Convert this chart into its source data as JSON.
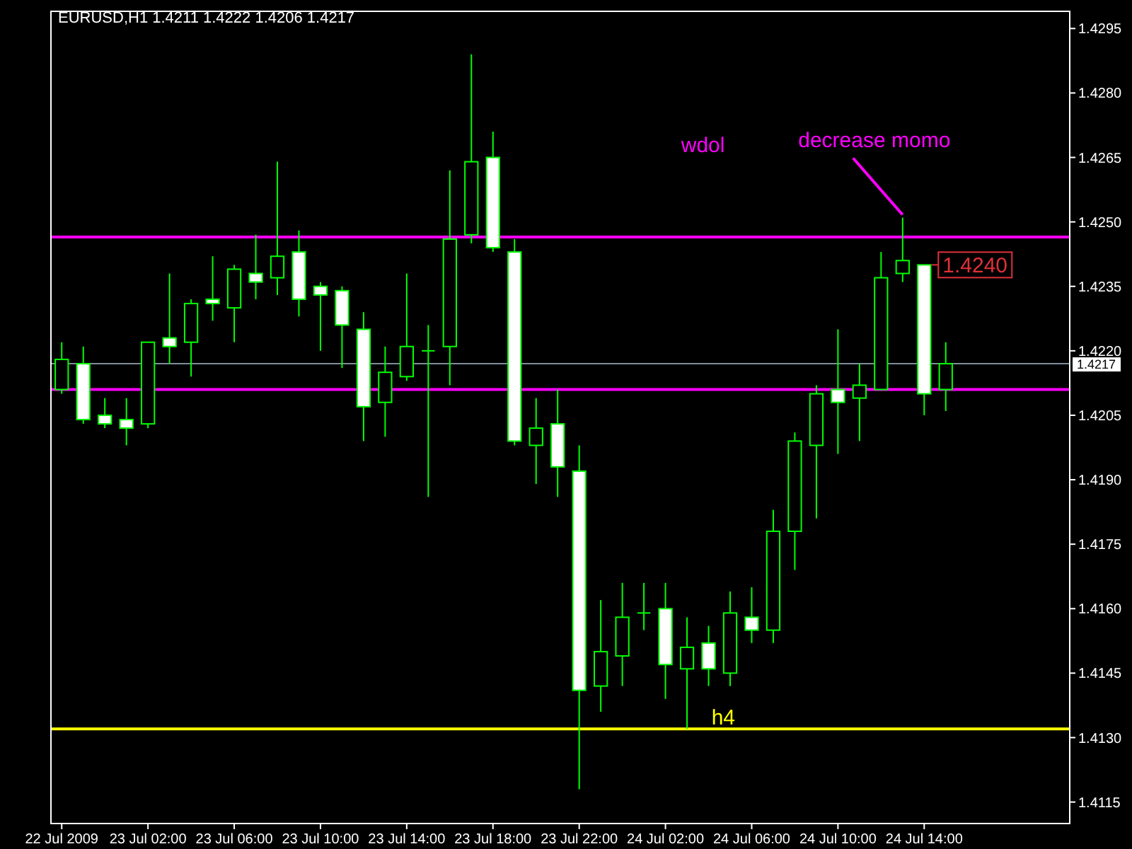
{
  "chart_data": {
    "type": "candlestick",
    "title": "EURUSD,H1  1.4211 1.4222 1.4206 1.4217",
    "color": "#00ff00",
    "x": [
      "2009-07-22T22:00",
      "2009-07-22T23:00",
      "2009-07-23T00:00",
      "2009-07-23T01:00",
      "2009-07-23T02:00",
      "2009-07-23T03:00",
      "2009-07-23T04:00",
      "2009-07-23T05:00",
      "2009-07-23T06:00",
      "2009-07-23T07:00",
      "2009-07-23T08:00",
      "2009-07-23T09:00",
      "2009-07-23T10:00",
      "2009-07-23T11:00",
      "2009-07-23T12:00",
      "2009-07-23T13:00",
      "2009-07-23T14:00",
      "2009-07-23T15:00",
      "2009-07-23T16:00",
      "2009-07-23T17:00",
      "2009-07-23T18:00",
      "2009-07-23T19:00",
      "2009-07-23T20:00",
      "2009-07-23T21:00",
      "2009-07-23T22:00",
      "2009-07-23T23:00",
      "2009-07-24T00:00",
      "2009-07-24T01:00",
      "2009-07-24T02:00",
      "2009-07-24T03:00",
      "2009-07-24T04:00",
      "2009-07-24T05:00",
      "2009-07-24T06:00",
      "2009-07-24T07:00",
      "2009-07-24T08:00",
      "2009-07-24T09:00",
      "2009-07-24T10:00",
      "2009-07-24T11:00",
      "2009-07-24T12:00",
      "2009-07-24T13:00",
      "2009-07-24T14:00",
      "2009-07-24T15:00"
    ],
    "ohlc": [
      [
        1.4211,
        1.4222,
        1.421,
        1.4218
      ],
      [
        1.4217,
        1.4221,
        1.4203,
        1.4204
      ],
      [
        1.4205,
        1.4209,
        1.4202,
        1.4203
      ],
      [
        1.4204,
        1.4209,
        1.4198,
        1.4202
      ],
      [
        1.4203,
        1.4222,
        1.4202,
        1.4222
      ],
      [
        1.4223,
        1.4238,
        1.4217,
        1.4221
      ],
      [
        1.4222,
        1.4232,
        1.4214,
        1.4231
      ],
      [
        1.4232,
        1.4242,
        1.4227,
        1.4231
      ],
      [
        1.423,
        1.424,
        1.4222,
        1.4239
      ],
      [
        1.4238,
        1.4247,
        1.4232,
        1.4236
      ],
      [
        1.4237,
        1.4264,
        1.4233,
        1.4242
      ],
      [
        1.4243,
        1.4248,
        1.4228,
        1.4232
      ],
      [
        1.4235,
        1.4236,
        1.422,
        1.4233
      ],
      [
        1.4234,
        1.4235,
        1.4216,
        1.4226
      ],
      [
        1.4225,
        1.4229,
        1.4199,
        1.4207
      ],
      [
        1.4208,
        1.4221,
        1.42,
        1.4215
      ],
      [
        1.4214,
        1.4238,
        1.4213,
        1.4221
      ],
      [
        1.422,
        1.4226,
        1.4186,
        1.422
      ],
      [
        1.4221,
        1.4262,
        1.4212,
        1.4246
      ],
      [
        1.4247,
        1.4289,
        1.4245,
        1.4264
      ],
      [
        1.4265,
        1.4271,
        1.4243,
        1.4244
      ],
      [
        1.4243,
        1.4246,
        1.4198,
        1.4199
      ],
      [
        1.4198,
        1.4209,
        1.4189,
        1.4202
      ],
      [
        1.4203,
        1.4211,
        1.4186,
        1.4193
      ],
      [
        1.4192,
        1.4198,
        1.4118,
        1.4141
      ],
      [
        1.4142,
        1.4162,
        1.4136,
        1.415
      ],
      [
        1.4149,
        1.4166,
        1.4142,
        1.4158
      ],
      [
        1.4159,
        1.4166,
        1.4155,
        1.4159
      ],
      [
        1.416,
        1.4166,
        1.4139,
        1.4147
      ],
      [
        1.4146,
        1.4158,
        1.4132,
        1.4151
      ],
      [
        1.4152,
        1.4156,
        1.4142,
        1.4146
      ],
      [
        1.4145,
        1.4164,
        1.4142,
        1.4159
      ],
      [
        1.4158,
        1.4165,
        1.4152,
        1.4155
      ],
      [
        1.4155,
        1.4183,
        1.4152,
        1.4178
      ],
      [
        1.4178,
        1.4201,
        1.4169,
        1.4199
      ],
      [
        1.4198,
        1.4212,
        1.4181,
        1.421
      ],
      [
        1.4211,
        1.4225,
        1.4196,
        1.4208
      ],
      [
        1.4209,
        1.4217,
        1.4199,
        1.4212
      ],
      [
        1.4211,
        1.4243,
        1.4211,
        1.4237
      ],
      [
        1.4238,
        1.4251,
        1.4236,
        1.4241
      ],
      [
        1.424,
        1.424,
        1.4205,
        1.421
      ],
      [
        1.4211,
        1.4222,
        1.4206,
        1.4217
      ]
    ],
    "xlim": [
      "2009-07-22T21:30",
      "2009-07-24T20:45"
    ],
    "xticks": [
      {
        "value": "2009-07-22T22:00",
        "label": "22 Jul 2009"
      },
      {
        "value": "2009-07-23T02:00",
        "label": "23 Jul 02:00"
      },
      {
        "value": "2009-07-23T06:00",
        "label": "23 Jul 06:00"
      },
      {
        "value": "2009-07-23T10:00",
        "label": "23 Jul 10:00"
      },
      {
        "value": "2009-07-23T14:00",
        "label": "23 Jul 14:00"
      },
      {
        "value": "2009-07-23T18:00",
        "label": "23 Jul 18:00"
      },
      {
        "value": "2009-07-23T22:00",
        "label": "23 Jul 22:00"
      },
      {
        "value": "2009-07-24T02:00",
        "label": "24 Jul 02:00"
      },
      {
        "value": "2009-07-24T06:00",
        "label": "24 Jul 06:00"
      },
      {
        "value": "2009-07-24T10:00",
        "label": "24 Jul 10:00"
      },
      {
        "value": "2009-07-24T14:00",
        "label": "24 Jul 14:00"
      }
    ],
    "ylim": [
      1.411,
      1.4299
    ],
    "yticks": [
      {
        "value": 1.4115,
        "label": "1.4115"
      },
      {
        "value": 1.413,
        "label": "1.4130"
      },
      {
        "value": 1.4145,
        "label": "1.4145"
      },
      {
        "value": 1.416,
        "label": "1.4160"
      },
      {
        "value": 1.4175,
        "label": "1.4175"
      },
      {
        "value": 1.419,
        "label": "1.4190"
      },
      {
        "value": 1.4205,
        "label": "1.4205"
      },
      {
        "value": 1.422,
        "label": "1.4220"
      },
      {
        "value": 1.4235,
        "label": "1.4235"
      },
      {
        "value": 1.425,
        "label": "1.4250"
      },
      {
        "value": 1.4265,
        "label": "1.4265"
      },
      {
        "value": 1.428,
        "label": "1.4280"
      },
      {
        "value": 1.4295,
        "label": "1.4295"
      }
    ],
    "ref_lines": [
      {
        "axis": "y",
        "value": 1.4217,
        "label": "1.4217",
        "color": "#7f8c9b"
      },
      {
        "axis": "y",
        "value": 1.42465,
        "label": "wdol",
        "color": "#ff00ff"
      },
      {
        "axis": "y",
        "value": 1.4211,
        "color": "#ff00ff"
      },
      {
        "axis": "y",
        "value": 1.4132,
        "label": "h4",
        "color": "#ffff00"
      }
    ],
    "annotations": [
      {
        "text": "decrease momo",
        "x": "2009-07-24T13:00",
        "y": 1.4251
      },
      {
        "text": "1.4240",
        "x": "2009-07-24T14:00",
        "y": 1.424
      }
    ]
  }
}
